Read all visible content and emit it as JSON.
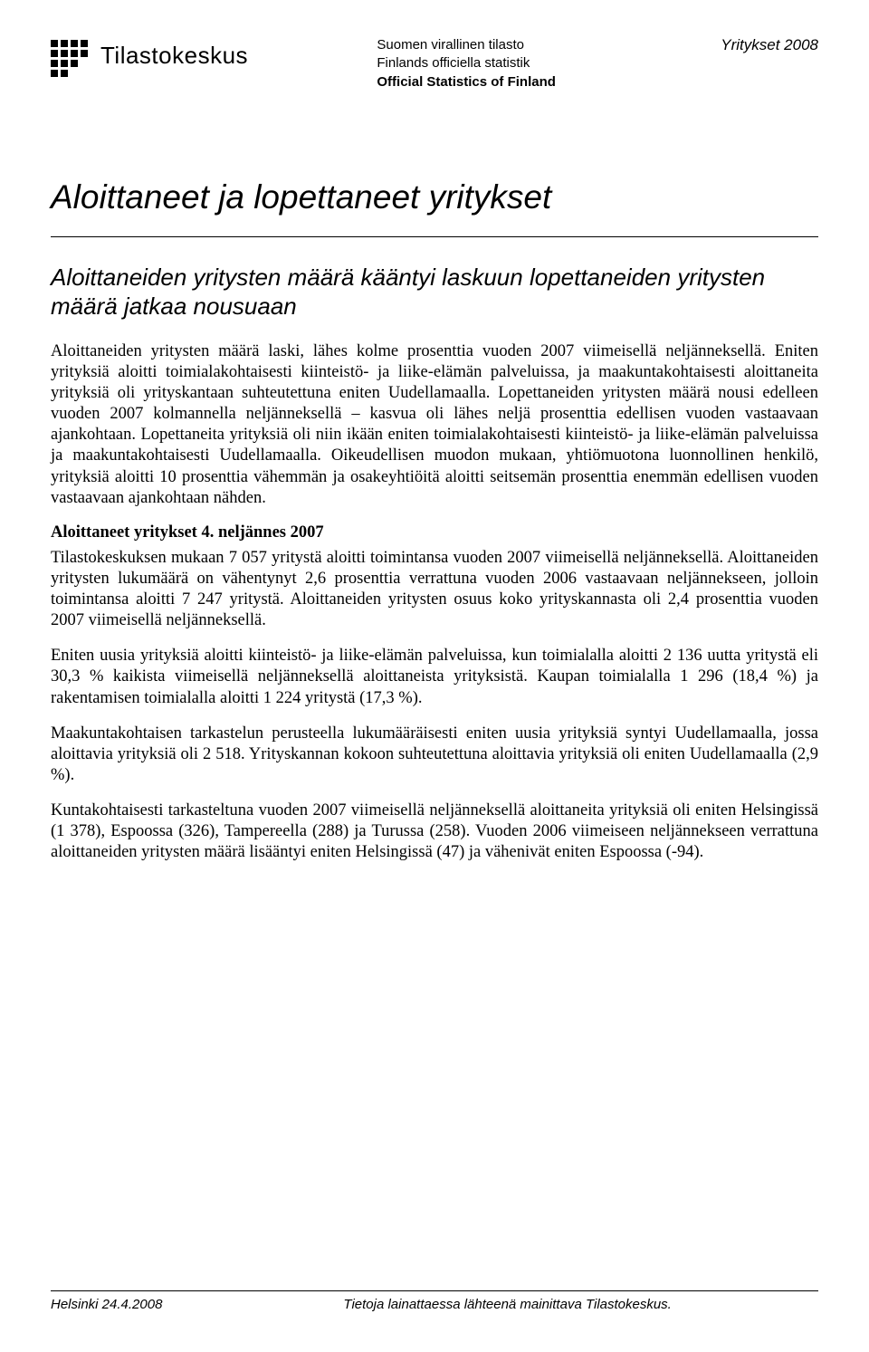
{
  "header": {
    "brand": "Tilastokeskus",
    "center_line1": "Suomen virallinen tilasto",
    "center_line2": "Finlands officiella statistik",
    "center_line3": "Official Statistics of Finland",
    "category": "Yritykset 2008"
  },
  "title": "Aloittaneet ja lopettaneet yritykset",
  "subtitle": "Aloittaneiden yritysten määrä kääntyi laskuun lopettaneiden yritysten määrä jatkaa nousuaan",
  "paragraphs": {
    "p1": "Aloittaneiden yritysten määrä laski, lähes kolme prosenttia vuoden 2007 viimeisellä neljänneksellä. Eniten yrityksiä aloitti toimialakohtaisesti kiinteistö- ja liike-elämän palveluissa, ja maakuntakohtaisesti aloittaneita yrityksiä oli yrityskantaan suhteutettuna eniten Uudellamaalla. Lopettaneiden yritysten määrä nousi edelleen vuoden 2007 kolmannella neljänneksellä – kasvua oli lähes neljä prosenttia edellisen vuoden vastaavaan ajankohtaan. Lopettaneita yrityksiä oli niin ikään eniten toimialakohtaisesti kiinteistö- ja liike-elämän palveluissa ja maakuntakohtaisesti Uudellamaalla. Oikeudellisen muodon mukaan, yhtiömuotona luonnollinen henkilö, yrityksiä aloitti 10 prosenttia vähemmän ja osakeyhtiöitä aloitti seitsemän prosenttia enemmän edellisen vuoden vastaavaan ajankohtaan nähden.",
    "h1": "Aloittaneet yritykset 4. neljännes 2007",
    "p2": "Tilastokeskuksen mukaan 7 057 yritystä aloitti toimintansa vuoden 2007 viimeisellä neljänneksellä. Aloittaneiden yritysten lukumäärä on vähentynyt 2,6 prosenttia verrattuna vuoden 2006 vastaavaan neljännekseen, jolloin toimintansa aloitti 7 247 yritystä. Aloittaneiden yritysten osuus koko yrityskannasta oli 2,4 prosenttia vuoden 2007 viimeisellä neljänneksellä.",
    "p3": "Eniten uusia yrityksiä aloitti kiinteistö- ja liike-elämän palveluissa, kun toimialalla aloitti 2 136 uutta yritystä eli 30,3 % kaikista viimeisellä neljänneksellä aloittaneista yrityksistä. Kaupan toimialalla 1 296 (18,4 %) ja rakentamisen toimialalla aloitti 1 224 yritystä (17,3 %).",
    "p4": "Maakuntakohtaisen tarkastelun perusteella lukumääräisesti eniten uusia yrityksiä syntyi Uudellamaalla, jossa aloittavia yrityksiä oli 2 518. Yrityskannan kokoon suhteutettuna aloittavia yrityksiä oli eniten Uudellamaalla (2,9 %).",
    "p5": "Kuntakohtaisesti tarkasteltuna vuoden 2007 viimeisellä neljänneksellä aloittaneita yrityksiä oli eniten Helsingissä (1 378), Espoossa (326), Tampereella (288) ja Turussa (258). Vuoden 2006 viimeiseen neljännekseen verrattuna aloittaneiden yritysten määrä lisääntyi eniten Helsingissä (47) ja vähenivät eniten Espoossa (-94)."
  },
  "footer": {
    "place_date": "Helsinki 24.4.2008",
    "credit": "Tietoja lainattaessa lähteenä mainittava Tilastokeskus."
  },
  "colors": {
    "text": "#000000",
    "background": "#ffffff"
  },
  "fonts": {
    "sans": "Arial",
    "serif": "Times New Roman",
    "title_size_pt": 28,
    "subtitle_size_pt": 20,
    "body_size_pt": 14,
    "footer_size_pt": 11
  }
}
